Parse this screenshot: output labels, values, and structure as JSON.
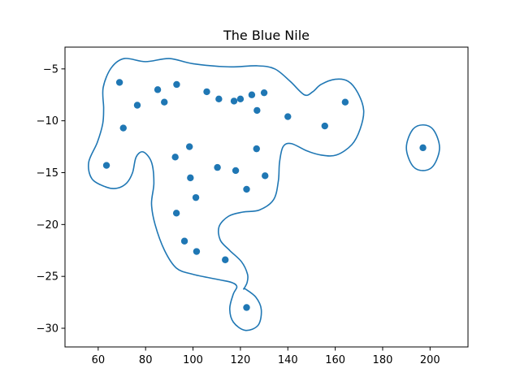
{
  "chart_data": {
    "type": "scatter",
    "title": "The Blue Nile",
    "xlabel": "",
    "ylabel": "",
    "xlim": [
      46,
      216
    ],
    "ylim": [
      -31.8,
      -2.9
    ],
    "x_ticks": [
      60,
      80,
      100,
      120,
      140,
      160,
      180,
      200
    ],
    "y_ticks": [
      -5,
      -10,
      -15,
      -20,
      -25,
      -30
    ],
    "x_tick_labels": [
      "60",
      "80",
      "100",
      "120",
      "140",
      "160",
      "180",
      "200"
    ],
    "y_tick_labels": [
      "−5",
      "−10",
      "−15",
      "−20",
      "−25",
      "−30"
    ],
    "grid": false,
    "color": "#1f77b4",
    "points": [
      [
        69.0,
        -6.3
      ],
      [
        93.1,
        -6.5
      ],
      [
        85.1,
        -7.0
      ],
      [
        76.5,
        -8.5
      ],
      [
        87.9,
        -8.2
      ],
      [
        105.8,
        -7.2
      ],
      [
        110.9,
        -7.9
      ],
      [
        117.3,
        -8.1
      ],
      [
        120.0,
        -7.9
      ],
      [
        124.8,
        -7.5
      ],
      [
        130.0,
        -7.3
      ],
      [
        127.0,
        -9.0
      ],
      [
        140.0,
        -9.6
      ],
      [
        155.6,
        -10.5
      ],
      [
        164.2,
        -8.2
      ],
      [
        70.6,
        -10.7
      ],
      [
        63.5,
        -14.3
      ],
      [
        98.5,
        -12.5
      ],
      [
        92.5,
        -13.5
      ],
      [
        126.8,
        -12.7
      ],
      [
        98.9,
        -15.5
      ],
      [
        110.3,
        -14.5
      ],
      [
        118.0,
        -14.8
      ],
      [
        130.4,
        -15.3
      ],
      [
        122.6,
        -16.6
      ],
      [
        101.2,
        -17.4
      ],
      [
        93.0,
        -18.9
      ],
      [
        96.4,
        -21.6
      ],
      [
        101.5,
        -22.6
      ],
      [
        113.6,
        -23.4
      ],
      [
        122.6,
        -28.0
      ],
      [
        197.0,
        -12.6
      ]
    ],
    "contours": [
      [
        [
          63.5,
          -16.4
        ],
        [
          57.4,
          -15.6
        ],
        [
          56.0,
          -14.0
        ],
        [
          59.6,
          -12.1
        ],
        [
          61.9,
          -10.3
        ],
        [
          62.3,
          -8.8
        ],
        [
          62.1,
          -6.8
        ],
        [
          65.5,
          -4.9
        ],
        [
          71.0,
          -4.0
        ],
        [
          80.0,
          -4.3
        ],
        [
          90.0,
          -4.0
        ],
        [
          100.0,
          -4.5
        ],
        [
          115.0,
          -4.8
        ],
        [
          127.0,
          -4.7
        ],
        [
          134.5,
          -5.0
        ],
        [
          141.0,
          -6.2
        ],
        [
          147.0,
          -7.5
        ],
        [
          150.5,
          -7.2
        ],
        [
          154.0,
          -6.5
        ],
        [
          160.0,
          -6.0
        ],
        [
          165.5,
          -6.2
        ],
        [
          169.5,
          -7.3
        ],
        [
          172.0,
          -9.0
        ],
        [
          170.5,
          -10.8
        ],
        [
          167.0,
          -12.3
        ],
        [
          160.5,
          -13.3
        ],
        [
          154.0,
          -13.3
        ],
        [
          148.0,
          -12.9
        ],
        [
          141.5,
          -12.2
        ],
        [
          138.0,
          -12.5
        ],
        [
          136.5,
          -14.0
        ],
        [
          136.0,
          -15.8
        ],
        [
          134.0,
          -17.6
        ],
        [
          128.0,
          -18.6
        ],
        [
          121.0,
          -18.8
        ],
        [
          115.0,
          -19.2
        ],
        [
          111.0,
          -20.2
        ],
        [
          111.5,
          -21.5
        ],
        [
          115.5,
          -22.5
        ],
        [
          120.5,
          -23.6
        ],
        [
          123.0,
          -24.8
        ],
        [
          122.8,
          -25.6
        ],
        [
          121.5,
          -26.2
        ],
        [
          122.0,
          -26.2
        ],
        [
          126.5,
          -27.0
        ],
        [
          128.8,
          -28.2
        ],
        [
          127.5,
          -29.7
        ],
        [
          122.0,
          -30.2
        ],
        [
          117.0,
          -29.4
        ],
        [
          115.5,
          -28.1
        ],
        [
          117.0,
          -26.7
        ],
        [
          118.5,
          -26.0
        ],
        [
          116.5,
          -25.6
        ],
        [
          110.5,
          -25.3
        ],
        [
          100.0,
          -24.8
        ],
        [
          93.0,
          -24.2
        ],
        [
          88.0,
          -22.5
        ],
        [
          84.0,
          -20.0
        ],
        [
          82.5,
          -18.0
        ],
        [
          83.5,
          -16.0
        ],
        [
          82.5,
          -14.0
        ],
        [
          79.0,
          -13.0
        ],
        [
          76.0,
          -13.5
        ],
        [
          74.5,
          -15.0
        ],
        [
          72.0,
          -16.0
        ],
        [
          68.0,
          -16.5
        ]
      ],
      [
        [
          197.0,
          -10.4
        ],
        [
          201.5,
          -10.9
        ],
        [
          204.0,
          -12.6
        ],
        [
          201.5,
          -14.3
        ],
        [
          197.0,
          -14.8
        ],
        [
          192.5,
          -14.3
        ],
        [
          190.0,
          -12.6
        ],
        [
          192.5,
          -10.9
        ]
      ]
    ]
  }
}
